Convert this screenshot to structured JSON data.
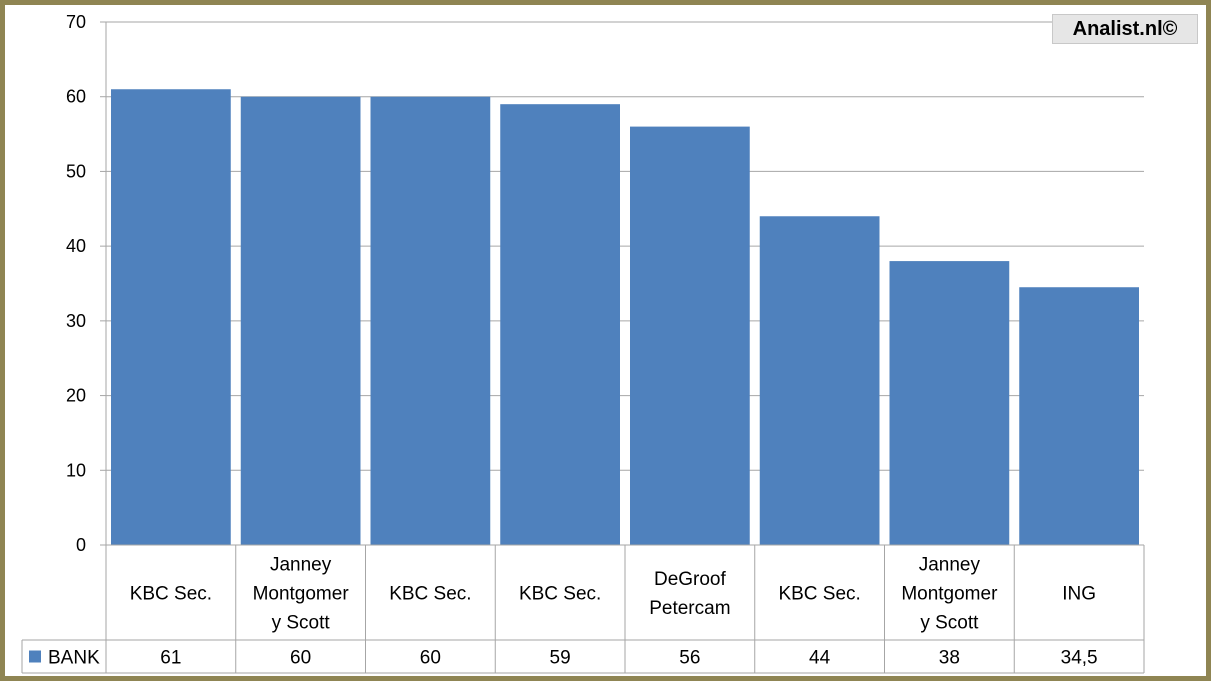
{
  "chart_data": {
    "type": "bar",
    "categories": [
      [
        "KBC Sec."
      ],
      [
        "Janney",
        "Montgomer",
        "y Scott"
      ],
      [
        "KBC Sec."
      ],
      [
        "KBC Sec."
      ],
      [
        "DeGroof",
        "Petercam"
      ],
      [
        "KBC Sec."
      ],
      [
        "Janney",
        "Montgomer",
        "y Scott"
      ],
      [
        "ING"
      ]
    ],
    "series": [
      {
        "name": "BANK",
        "values": [
          61,
          60,
          60,
          59,
          56,
          44,
          38,
          34.5
        ],
        "value_labels": [
          "61",
          "60",
          "60",
          "59",
          "56",
          "44",
          "38",
          "34,5"
        ]
      }
    ],
    "ylim": [
      0,
      70
    ],
    "yticks": [
      0,
      10,
      20,
      30,
      40,
      50,
      60,
      70
    ],
    "grid": true,
    "data_table": true,
    "bar_color": "#4f81bd"
  },
  "watermark": "Analist.nl©"
}
